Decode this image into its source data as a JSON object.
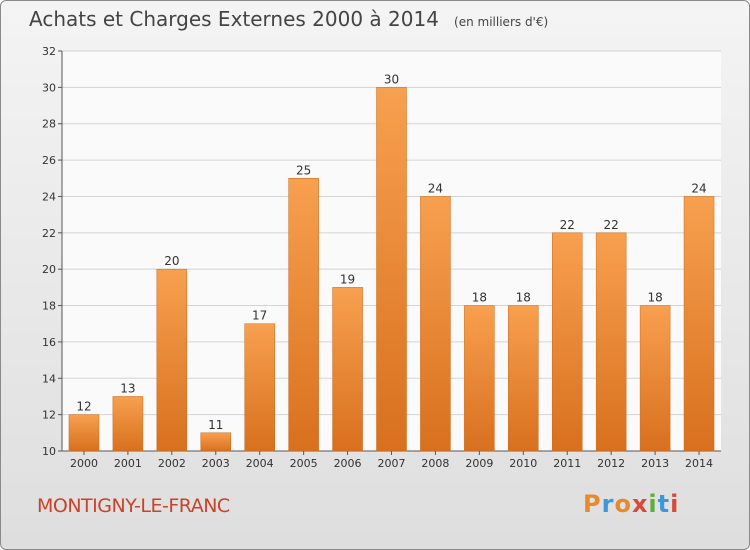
{
  "chart_data": {
    "type": "bar",
    "title": "Achats et Charges Externes 2000 à 2014",
    "subtitle": "(en milliers d'€)",
    "categories": [
      "2000",
      "2001",
      "2002",
      "2003",
      "2004",
      "2005",
      "2006",
      "2007",
      "2008",
      "2009",
      "2010",
      "2011",
      "2012",
      "2013",
      "2014"
    ],
    "values": [
      12,
      13,
      20,
      11,
      17,
      25,
      19,
      30,
      24,
      18,
      18,
      22,
      22,
      18,
      24
    ],
    "ylim": [
      10,
      32
    ],
    "yticks": [
      10,
      12,
      14,
      16,
      18,
      20,
      22,
      24,
      26,
      28,
      30,
      32
    ],
    "grid": true,
    "bar_color": "#f0883a",
    "xlabel": "",
    "ylabel": ""
  },
  "footer": {
    "commune": "MONTIGNY-LE-FRANC",
    "logo_letters": [
      "P",
      "r",
      "o",
      "x",
      "i",
      "t",
      "i"
    ],
    "logo_colors": [
      "#e8892b",
      "#3a9ad9",
      "#e8892b",
      "#d64a3a",
      "#5bb035",
      "#3a9ad9",
      "#d64a3a"
    ]
  }
}
